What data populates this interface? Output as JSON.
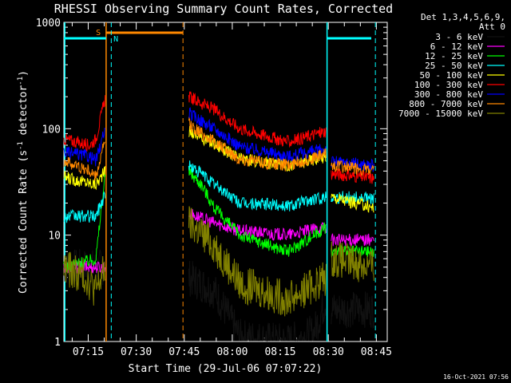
{
  "chart_data": {
    "type": "line",
    "title": "RHESSI Observing Summary Count Rates, Corrected",
    "xlabel": "Start Time (29-Jul-06 07:07:22)",
    "ylabel_main": "Corrected Count Rate (s",
    "ylabel_sup1": "-1",
    "ylabel_mid": " detector",
    "ylabel_sup2": "-1",
    "ylabel_end": ")",
    "yscale": "log",
    "ylim": [
      1,
      1000
    ],
    "xlim_minutes": [
      0,
      101
    ],
    "y_ticks": [
      {
        "value": 1,
        "label": "1"
      },
      {
        "value": 10,
        "label": "10"
      },
      {
        "value": 100,
        "label": "100"
      },
      {
        "value": 1000,
        "label": "1000"
      }
    ],
    "x_ticks": [
      {
        "minute": 7.6,
        "label": "07:15"
      },
      {
        "minute": 22.6,
        "label": "07:30"
      },
      {
        "minute": 37.6,
        "label": "07:45"
      },
      {
        "minute": 52.6,
        "label": "08:00"
      },
      {
        "minute": 67.6,
        "label": "08:15"
      },
      {
        "minute": 82.6,
        "label": "08:30"
      },
      {
        "minute": 97.6,
        "label": "08:45"
      }
    ],
    "legend": {
      "header": [
        "Det 1,3,4,5,6,9,",
        "Att 0"
      ],
      "placement": "right"
    },
    "segments_minutes": [
      [
        0,
        13
      ],
      [
        39,
        82
      ],
      [
        83.5,
        97
      ]
    ],
    "series": [
      {
        "name": "3 - 6 keV",
        "color": "#000000",
        "values": [
          [
            0,
            5
          ],
          [
            13,
            5
          ],
          [
            39,
            4
          ],
          [
            47,
            3
          ],
          [
            55,
            1.1
          ],
          [
            70,
            1
          ],
          [
            78,
            1.2
          ],
          [
            82,
            2.5
          ],
          [
            83.5,
            2
          ],
          [
            97,
            2
          ]
        ]
      },
      {
        "name": "6 - 12 keV",
        "color": "#ff00ff",
        "values": [
          [
            0,
            5
          ],
          [
            13,
            5
          ],
          [
            39,
            16
          ],
          [
            47,
            13
          ],
          [
            55,
            11
          ],
          [
            70,
            10
          ],
          [
            82,
            12
          ],
          [
            83.5,
            9
          ],
          [
            97,
            9
          ]
        ]
      },
      {
        "name": "12 - 25 keV",
        "color": "#00ff00",
        "values": [
          [
            0,
            5
          ],
          [
            10,
            6
          ],
          [
            13,
            40
          ],
          [
            39,
            40
          ],
          [
            43,
            30
          ],
          [
            47,
            18
          ],
          [
            55,
            10
          ],
          [
            70,
            7
          ],
          [
            80,
            11
          ],
          [
            82,
            12
          ],
          [
            83.5,
            7
          ],
          [
            97,
            7
          ]
        ]
      },
      {
        "name": "25 - 50 keV",
        "color": "#00ffff",
        "values": [
          [
            0,
            15
          ],
          [
            10,
            15
          ],
          [
            13,
            25
          ],
          [
            39,
            45
          ],
          [
            43,
            38
          ],
          [
            47,
            30
          ],
          [
            55,
            20
          ],
          [
            70,
            19
          ],
          [
            82,
            23
          ],
          [
            83.5,
            23
          ],
          [
            97,
            22
          ]
        ]
      },
      {
        "name": "50 - 100 keV",
        "color": "#ffff00",
        "values": [
          [
            0,
            35
          ],
          [
            10,
            30
          ],
          [
            13,
            40
          ],
          [
            39,
            95
          ],
          [
            47,
            72
          ],
          [
            55,
            52
          ],
          [
            70,
            45
          ],
          [
            82,
            55
          ],
          [
            83.5,
            23
          ],
          [
            97,
            18
          ]
        ]
      },
      {
        "name": "100 - 300 keV",
        "color": "#ff0000",
        "values": [
          [
            0,
            80
          ],
          [
            8,
            70
          ],
          [
            10,
            80
          ],
          [
            13,
            200
          ],
          [
            39,
            200
          ],
          [
            47,
            150
          ],
          [
            55,
            100
          ],
          [
            70,
            75
          ],
          [
            82,
            95
          ],
          [
            83.5,
            38
          ],
          [
            97,
            34
          ]
        ]
      },
      {
        "name": "300 - 800 keV",
        "color": "#0000ff",
        "values": [
          [
            0,
            60
          ],
          [
            8,
            55
          ],
          [
            10,
            50
          ],
          [
            13,
            100
          ],
          [
            39,
            140
          ],
          [
            47,
            100
          ],
          [
            55,
            68
          ],
          [
            70,
            55
          ],
          [
            82,
            65
          ],
          [
            83.5,
            49
          ],
          [
            97,
            45
          ]
        ]
      },
      {
        "name": "800 - 7000 keV",
        "color": "#ff8800",
        "values": [
          [
            0,
            50
          ],
          [
            8,
            40
          ],
          [
            10,
            35
          ],
          [
            13,
            80
          ],
          [
            39,
            110
          ],
          [
            47,
            75
          ],
          [
            55,
            52
          ],
          [
            70,
            45
          ],
          [
            82,
            58
          ],
          [
            83.5,
            46
          ],
          [
            97,
            40
          ]
        ]
      },
      {
        "name": "7000 - 15000 keV",
        "color": "#808000",
        "values": [
          [
            0,
            5
          ],
          [
            7,
            4
          ],
          [
            10,
            3
          ],
          [
            13,
            5
          ],
          [
            39,
            13
          ],
          [
            47,
            8
          ],
          [
            55,
            3.5
          ],
          [
            70,
            2.5
          ],
          [
            82,
            4
          ],
          [
            83.5,
            6
          ],
          [
            97,
            5
          ]
        ]
      }
    ],
    "annotations": [
      {
        "text": "S",
        "color": "#ff8800"
      },
      {
        "text": "N",
        "color": "#00ffff"
      }
    ],
    "timestamp": "16-Oct-2021 07:56"
  },
  "colors": {
    "saa_flag": "#ff8800",
    "night_flag": "#00ffff",
    "background": "#000000",
    "axis": "#ffffff"
  }
}
